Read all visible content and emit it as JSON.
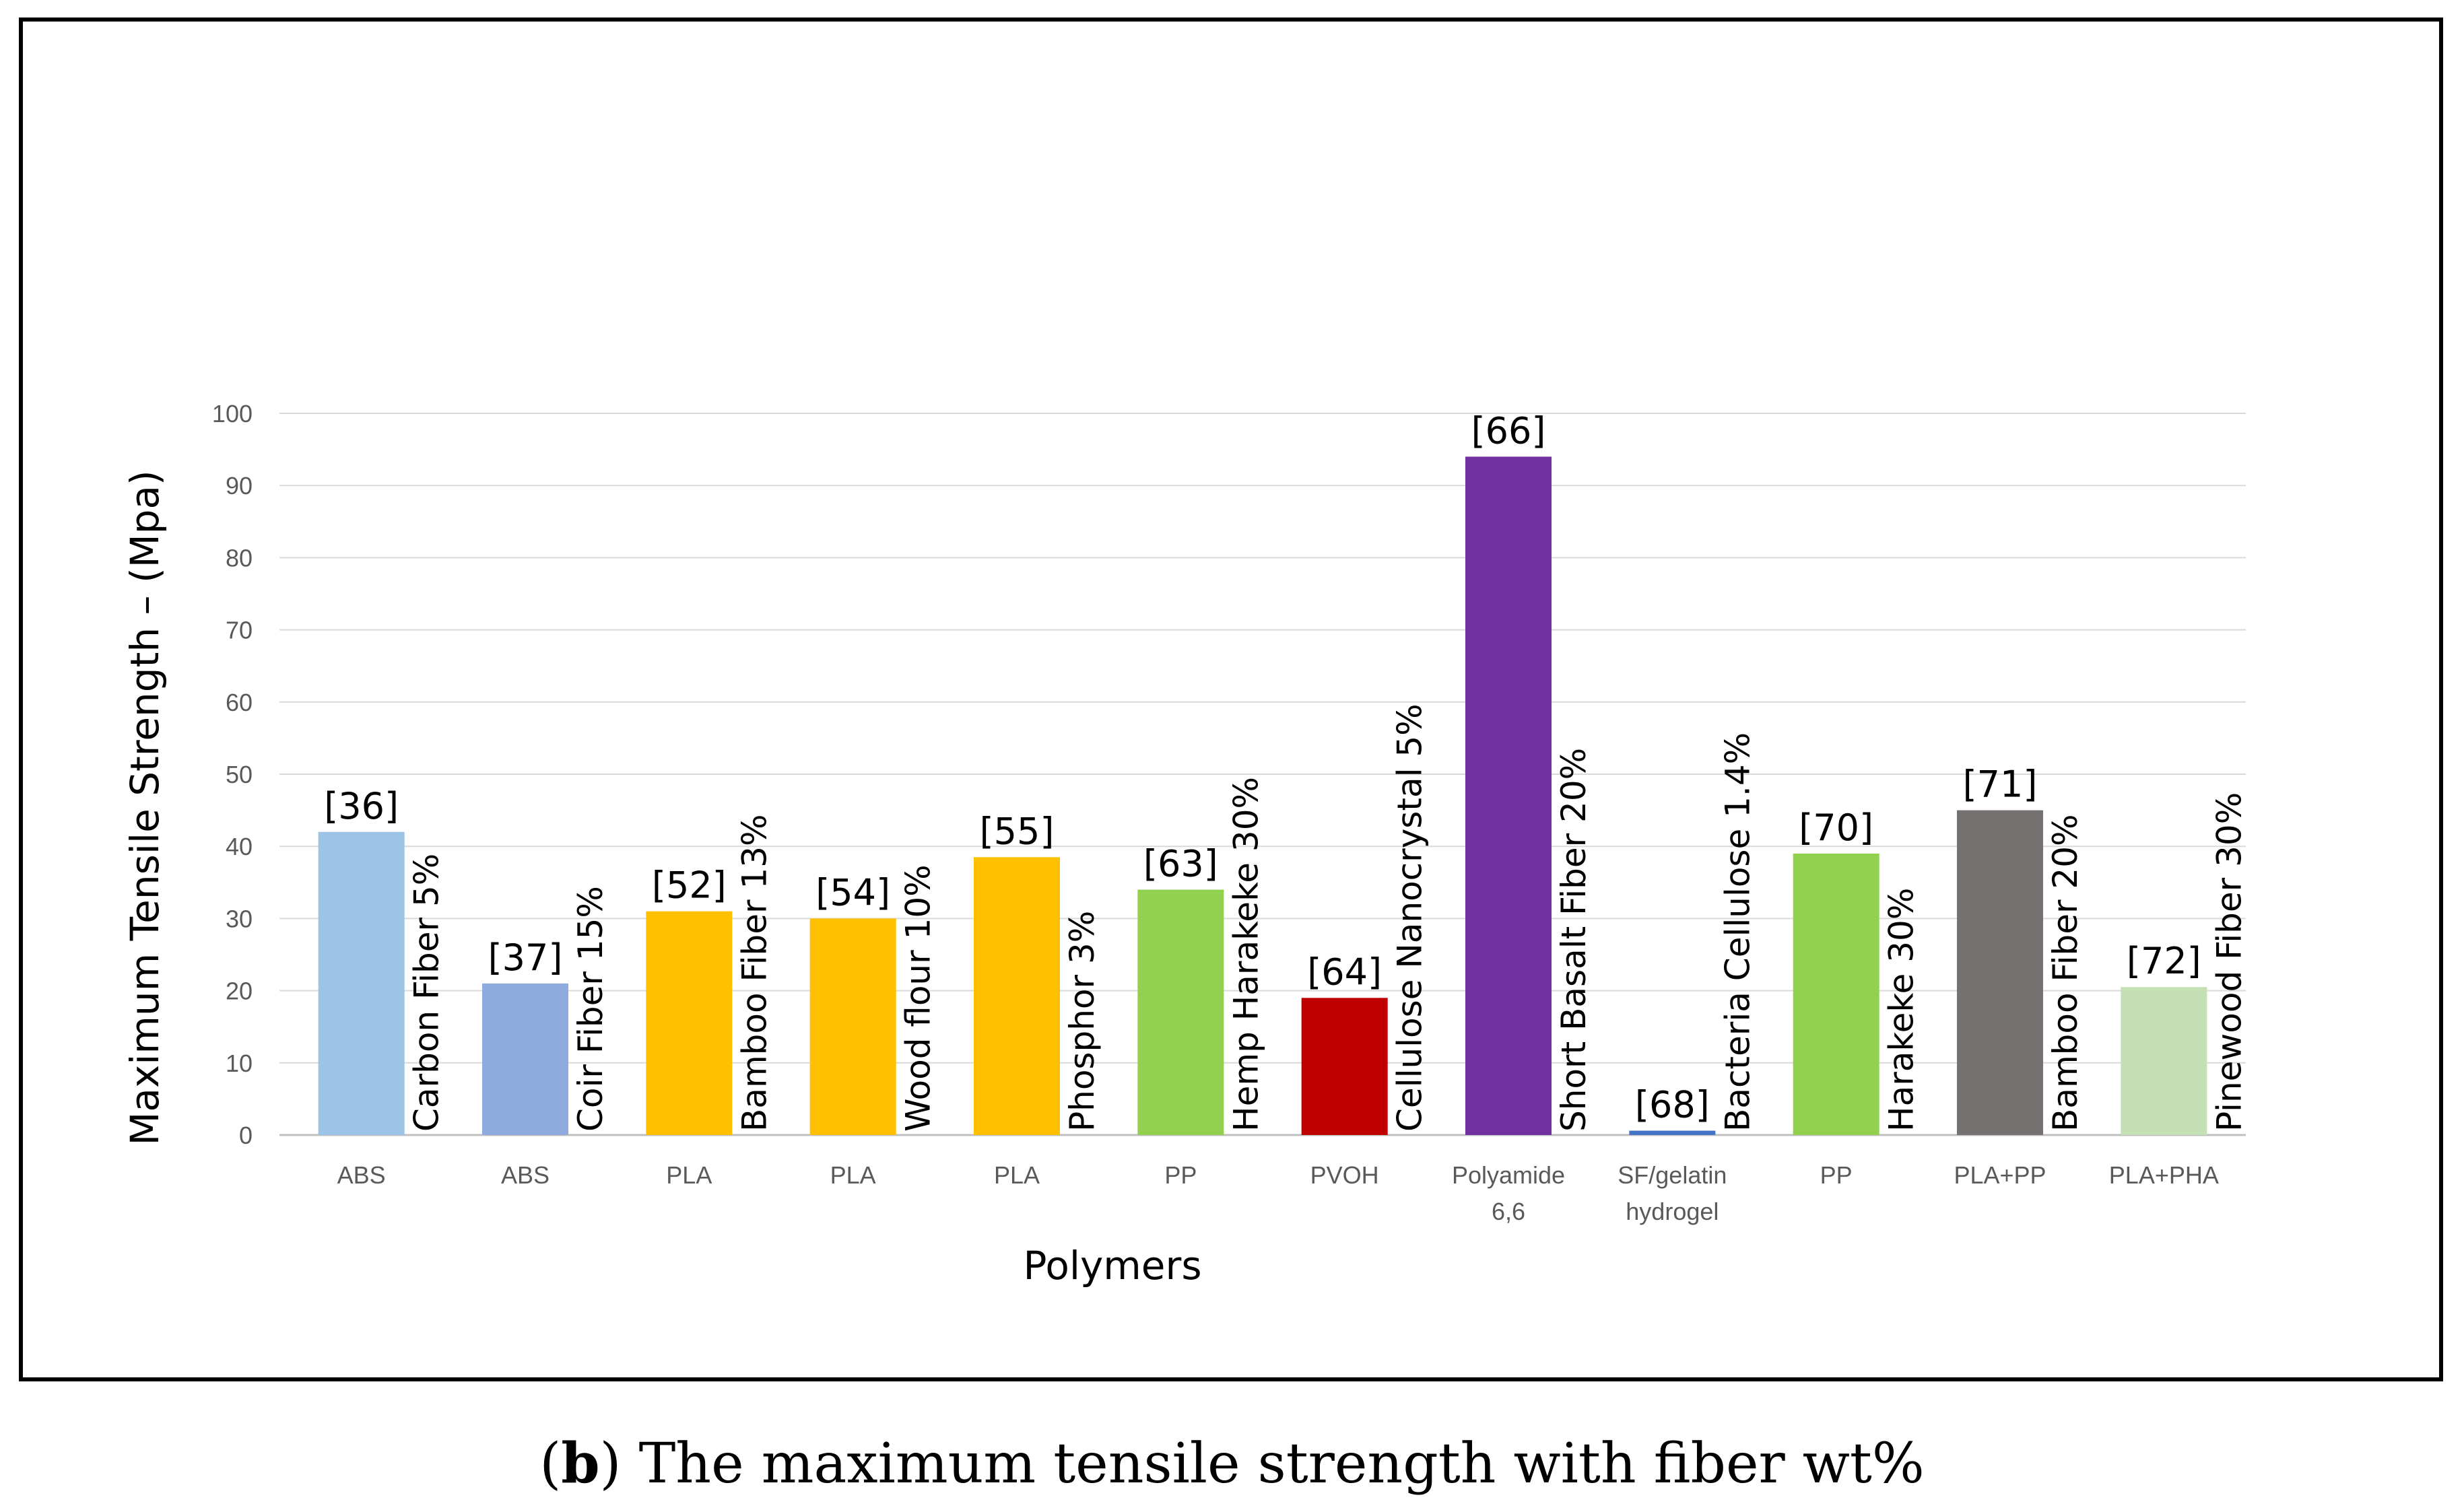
{
  "caption": {
    "letter": "b",
    "text": "The maximum tensile strength with fiber wt%"
  },
  "chart_data": {
    "type": "bar",
    "title": "",
    "xlabel": "Polymers",
    "ylabel": "Maximum Tensile Strength – (Mpa)",
    "ylim": [
      0,
      100
    ],
    "yticks": [
      0,
      10,
      20,
      30,
      40,
      50,
      60,
      70,
      80,
      90,
      100
    ],
    "grid": true,
    "bars": [
      {
        "category": [
          "ABS"
        ],
        "value": 42,
        "ref": "[36]",
        "fiber": "Carbon Fiber 5%",
        "color": "#9DC3E6"
      },
      {
        "category": [
          "ABS"
        ],
        "value": 21,
        "ref": "[37]",
        "fiber": "Coir Fiber 15%",
        "color": "#8FAADC"
      },
      {
        "category": [
          "PLA"
        ],
        "value": 31,
        "ref": "[52]",
        "fiber": "Bamboo Fiber  13%",
        "color": "#FFC000"
      },
      {
        "category": [
          "PLA"
        ],
        "value": 30,
        "ref": "[54]",
        "fiber": "Wood flour 10%",
        "color": "#FFC000"
      },
      {
        "category": [
          "PLA"
        ],
        "value": 38.5,
        "ref": "[55]",
        "fiber": "Phosphor 3%",
        "color": "#FFC000"
      },
      {
        "category": [
          "PP"
        ],
        "value": 34,
        "ref": "[63]",
        "fiber": "Hemp Harakeke 30%",
        "color": "#92D050"
      },
      {
        "category": [
          "PVOH"
        ],
        "value": 19,
        "ref": "[64]",
        "fiber": "Cellulose Nanocrystal 5%",
        "color": "#C00000"
      },
      {
        "category": [
          "Polyamide",
          "6,6"
        ],
        "value": 94,
        "ref": "[66]",
        "fiber": "Short Basalt Fiber 20%",
        "color": "#7030A0"
      },
      {
        "category": [
          "SF/gelatin",
          "hydrogel"
        ],
        "value": 0.6,
        "ref": "[68]",
        "fiber": "Bacteria Cellulose 1.4%",
        "color": "#4472C4"
      },
      {
        "category": [
          "PP"
        ],
        "value": 39,
        "ref": "[70]",
        "fiber": "Harakeke 30%",
        "color": "#92D050"
      },
      {
        "category": [
          "PLA+PP"
        ],
        "value": 45,
        "ref": "[71]",
        "fiber": "Bamboo Fiber 20%",
        "color": "#767171"
      },
      {
        "category": [
          "PLA+PHA"
        ],
        "value": 20.5,
        "ref": "[72]",
        "fiber": "Pinewood Fiber 30%",
        "color": "#C5E0B4"
      }
    ]
  }
}
